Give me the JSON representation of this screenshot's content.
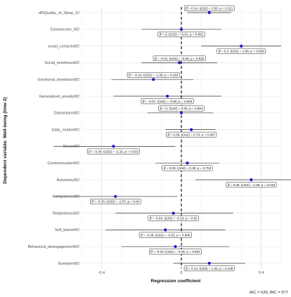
{
  "chart_data": {
    "type": "forest",
    "xlabel": "Regression coefficient",
    "ylabel": "Dependent variable: Well-being (time 2)",
    "caption": "AIC = 520, BIC = 577",
    "xlim": [
      -0.5,
      0.5
    ],
    "x_ticks": [
      -0.4,
      0.0,
      0.4
    ],
    "x_tick_labels": [
      "-0.4",
      "0",
      "0.4"
    ],
    "grid": true,
    "reference_line": 0,
    "point_color": "#1a1acc",
    "rows": [
      {
        "label": "dfSQuality_of_Sleep_12",
        "estimate": 0.14,
        "ci": [
          0.03,
          0.25
        ],
        "annotation": "β̂ = 0.14,  t(162) = 2.56,  p = 0.011"
      },
      {
        "label": "Extraversion_W2",
        "estimate": 0.0,
        "ci": [
          -0.2,
          0.2
        ],
        "annotation": "β̂ = 0,  t(162) = -0.01,  p = 0.991"
      },
      {
        "label": "social_contactsW2",
        "estimate": 0.3,
        "ci": [
          0.1,
          0.5
        ],
        "annotation": "β̂ = 0.3,  t(162) = 2.68,  p = 0.008"
      },
      {
        "label": "Social_lonelinessW2",
        "estimate": -0.01,
        "ci": [
          -0.2,
          0.18
        ],
        "annotation": "β̂ = -0.01,  t(162) = -0.08,  p = 0.932"
      },
      {
        "label": "Emotional_lonelinessW2",
        "estimate": -0.14,
        "ci": [
          -0.35,
          0.06
        ],
        "annotation": "β̂ = -0.14,  t(162) = -1.08,  p = 0.283"
      },
      {
        "label": "Generalized_anxietyW2",
        "estimate": -0.07,
        "ci": [
          -0.34,
          0.2
        ],
        "annotation": "β̂ = -0.07,  t(162) = -0.55,  p = 0.583"
      },
      {
        "label": "DistractionsW2",
        "estimate": 0.0,
        "ci": [
          -0.17,
          0.16
        ],
        "annotation": "β̂ = 0,  t(162) = 0.05,  p = 0.963"
      },
      {
        "label": "Daily_routineW2",
        "estimate": 0.05,
        "ci": [
          -0.08,
          0.17
        ],
        "annotation": "β̂ = 0.05,  t(162) = 0.73,  p = 0.467"
      },
      {
        "label": "StressW2",
        "estimate": -0.34,
        "ci": [
          -0.64,
          -0.03
        ],
        "annotation": "β̂ = -0.34,  t(162) = -2.15,  p = 0.033"
      },
      {
        "label": "CommunicationW2",
        "estimate": 0.03,
        "ci": [
          -0.13,
          0.19
        ],
        "annotation": "β̂ = 0.03,  t(162) = 0.38,  p = 0.703"
      },
      {
        "label": "AutonomyW2",
        "estimate": 0.35,
        "ci": [
          0.07,
          0.63
        ],
        "annotation": "β̂ = 0.35,  t(162) = 2.38,  p = 0.018"
      },
      {
        "label": "CompetenceW2",
        "estimate": -0.33,
        "ci": [
          -0.64,
          -0.02
        ],
        "annotation": "β̂ = -0.33,  t(162) = -2.07,  p = 0.04"
      },
      {
        "label": "RelatednessW2",
        "estimate": -0.04,
        "ci": [
          -0.33,
          0.26
        ],
        "annotation": "β̂ = -0.04,  t(162) = -0.23,  p = 0.82"
      },
      {
        "label": "Self_blameW2",
        "estimate": -0.08,
        "ci": [
          -0.38,
          0.22
        ],
        "annotation": "β̂ = -0.08,  t(162) = -0.52,  p = 0.606"
      },
      {
        "label": "Behavioral_disengagementW2",
        "estimate": -0.03,
        "ci": [
          -0.3,
          0.24
        ],
        "annotation": "β̂ = -0.03,  t(162) = -0.25,  p = 0.804"
      },
      {
        "label": "BoredomW2",
        "estimate": 0.14,
        "ci": [
          -0.04,
          0.32
        ],
        "annotation": "β̂ = 0.14,  t(162) = 1.53,  p = 0.128"
      }
    ]
  }
}
